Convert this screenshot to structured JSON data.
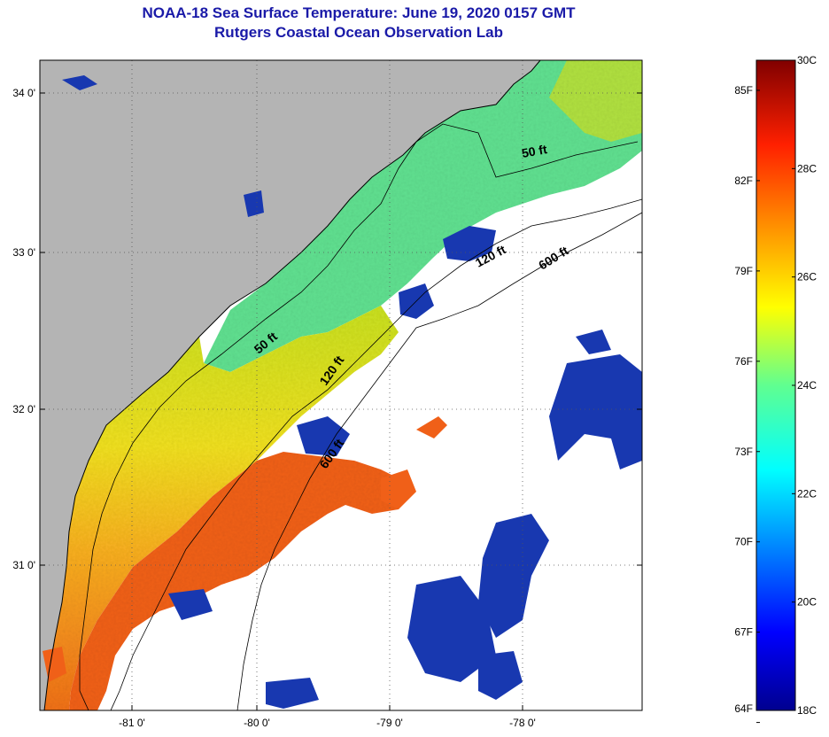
{
  "title": "NOAA-18 Sea Surface Temperature:  June 19, 2020 0157 GMT",
  "subtitle": "Rutgers Coastal Ocean Observation Lab",
  "map": {
    "lat_labels": [
      "34 0'",
      "33 0'",
      "32 0'",
      "31 0'"
    ],
    "lon_labels": [
      "-81 0'",
      "-80 0'",
      "-79 0'",
      "-78 0'"
    ],
    "contours": {
      "shelf50_upper": "50 ft",
      "shelf50_lower": "50 ft",
      "shelf120_upper": "120 ft",
      "shelf120_lower": "120 ft",
      "shelf600_upper": "600 ft",
      "shelf600_lower": "600 ft"
    },
    "colors": {
      "land": "#b4b4b4",
      "no_data": "#ffffff",
      "coast_line": "#000000"
    }
  },
  "colorbar": {
    "fahrenheit_labels": [
      "85F",
      "82F",
      "79F",
      "76F",
      "73F",
      "70F",
      "67F",
      "64F"
    ],
    "celsius_labels": [
      "30C",
      "28C",
      "26C",
      "24C",
      "22C",
      "20C",
      "18C"
    ],
    "range_celsius": [
      18,
      30
    ],
    "range_fahrenheit": [
      64,
      85
    ]
  }
}
